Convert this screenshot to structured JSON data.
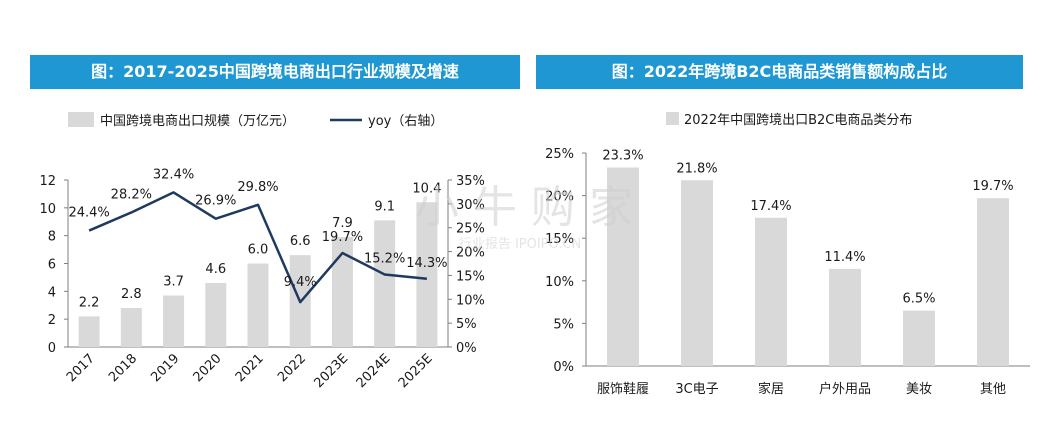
{
  "left_title": "图：2017-2025中国跨境电商出口行业规模及增速",
  "right_title": "图：2022年跨境B2C电商品类销售额构成占比",
  "watermark": {
    "main": "小 牛 购 家",
    "sub": "行业报告 IPOIPO.CN"
  },
  "colors": {
    "bar": "#d9d9d9",
    "line": "#1f3a5f",
    "title_bg": "#1e97d3"
  },
  "chart_data": [
    {
      "type": "bar",
      "combo": "bar+line",
      "categories": [
        "2017",
        "2018",
        "2019",
        "2020",
        "2021",
        "2022",
        "2023E",
        "2024E",
        "2025E"
      ],
      "series": [
        {
          "name": "中国跨境电商出口规模（万亿元）",
          "type": "bar",
          "axis": "left",
          "values": [
            2.2,
            2.8,
            3.7,
            4.6,
            6.0,
            6.6,
            7.9,
            9.1,
            10.4
          ],
          "labels": [
            "2.2",
            "2.8",
            "3.7",
            "4.6",
            "6.0",
            "6.6",
            "7.9",
            "9.1",
            "10.4"
          ]
        },
        {
          "name": "yoy（右轴）",
          "type": "line",
          "axis": "right",
          "values": [
            24.4,
            28.2,
            32.4,
            26.9,
            29.8,
            9.4,
            19.7,
            15.2,
            14.3
          ],
          "labels": [
            "24.4%",
            "28.2%",
            "32.4%",
            "26.9%",
            "29.8%",
            "9.4%",
            "19.7%",
            "15.2%",
            "14.3%"
          ]
        }
      ],
      "y_left": {
        "range": [
          0,
          12
        ],
        "ticks": [
          "0",
          "2",
          "4",
          "6",
          "8",
          "10",
          "12"
        ]
      },
      "y_right": {
        "range": [
          0,
          35
        ],
        "ticks": [
          "0%",
          "5%",
          "10%",
          "15%",
          "20%",
          "25%",
          "30%",
          "35%"
        ]
      },
      "legend_position": "top",
      "grid": false
    },
    {
      "type": "bar",
      "categories": [
        "服饰鞋履",
        "3C电子",
        "家居",
        "户外用品",
        "美妆",
        "其他"
      ],
      "series": [
        {
          "name": "2022年中国跨境出口B2C电商品类分布",
          "values": [
            23.3,
            21.8,
            17.4,
            11.4,
            6.5,
            19.7
          ],
          "labels": [
            "23.3%",
            "21.8%",
            "17.4%",
            "11.4%",
            "6.5%",
            "19.7%"
          ]
        }
      ],
      "y": {
        "range": [
          0,
          25
        ],
        "ticks": [
          "0%",
          "5%",
          "10%",
          "15%",
          "20%",
          "25%"
        ]
      },
      "legend_position": "top",
      "grid": false
    }
  ]
}
